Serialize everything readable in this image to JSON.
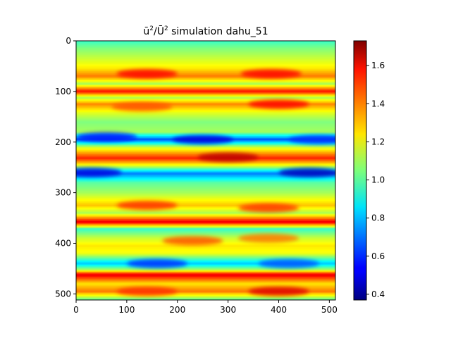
{
  "chart_data": {
    "type": "heatmap",
    "title": "ū²/Ū² simulation dahu_51",
    "title_parts": {
      "pre": "ū",
      "sup1": "2",
      "mid": "/Ū",
      "sup2": "2",
      "post": " simulation dahu_51"
    },
    "xlabel": "",
    "ylabel": "",
    "xlim": [
      0,
      512
    ],
    "ylim": [
      512,
      0
    ],
    "x_ticks": [
      0,
      100,
      200,
      300,
      400,
      500
    ],
    "y_ticks": [
      0,
      100,
      200,
      300,
      400,
      500
    ],
    "colormap": "jet",
    "colorbar": {
      "range": [
        0.37,
        1.73
      ],
      "ticks": [
        0.4,
        0.6,
        0.8,
        1.0,
        1.2,
        1.4,
        1.6
      ],
      "tick_labels": [
        "0.4",
        "0.6",
        "0.8",
        "1.0",
        "1.2",
        "1.4",
        "1.6"
      ]
    },
    "row_profile": {
      "description_y": [
        0,
        15,
        35,
        55,
        70,
        85,
        100,
        112,
        125,
        140,
        160,
        180,
        195,
        210,
        232,
        248,
        262,
        280,
        300,
        325,
        340,
        358,
        372,
        390,
        405,
        420,
        440,
        452,
        462,
        480,
        495,
        512
      ],
      "mean_value": [
        0.95,
        1.05,
        1.15,
        1.25,
        1.4,
        1.1,
        1.55,
        1.1,
        1.38,
        1.2,
        1.05,
        1.1,
        0.65,
        1.15,
        1.52,
        1.15,
        0.7,
        1.0,
        1.1,
        1.3,
        1.1,
        1.6,
        0.95,
        1.15,
        1.25,
        1.2,
        0.8,
        1.1,
        1.6,
        1.25,
        1.4,
        1.0
      ]
    },
    "hotspots": [
      {
        "x": 140,
        "y": 65,
        "value": 1.55
      },
      {
        "x": 385,
        "y": 65,
        "value": 1.55
      },
      {
        "x": 130,
        "y": 130,
        "value": 1.45
      },
      {
        "x": 400,
        "y": 125,
        "value": 1.55
      },
      {
        "x": 250,
        "y": 195,
        "value": 0.5
      },
      {
        "x": 60,
        "y": 190,
        "value": 0.55
      },
      {
        "x": 480,
        "y": 195,
        "value": 0.6
      },
      {
        "x": 300,
        "y": 230,
        "value": 1.65
      },
      {
        "x": 30,
        "y": 260,
        "value": 0.5
      },
      {
        "x": 460,
        "y": 260,
        "value": 0.45
      },
      {
        "x": 140,
        "y": 325,
        "value": 1.5
      },
      {
        "x": 380,
        "y": 330,
        "value": 1.5
      },
      {
        "x": 230,
        "y": 395,
        "value": 1.45
      },
      {
        "x": 380,
        "y": 390,
        "value": 1.4
      },
      {
        "x": 160,
        "y": 440,
        "value": 0.6
      },
      {
        "x": 420,
        "y": 440,
        "value": 0.65
      },
      {
        "x": 140,
        "y": 495,
        "value": 1.5
      },
      {
        "x": 400,
        "y": 495,
        "value": 1.6
      }
    ]
  }
}
